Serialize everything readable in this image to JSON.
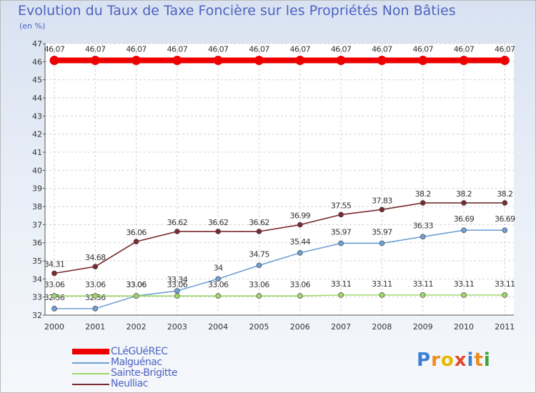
{
  "title": "Evolution du Taux de Taxe Foncière sur les Propriétés Non Bâties",
  "unit_label": "(en %)",
  "logo_text": "Proxiti",
  "chart_data": {
    "type": "line",
    "title": "Evolution du Taux de Taxe Foncière sur les Propriétés Non Bâties",
    "ylabel": "(en %)",
    "xlabel": "",
    "ylim": [
      32,
      47
    ],
    "yticks": [
      32,
      33,
      34,
      35,
      36,
      37,
      38,
      39,
      40,
      41,
      42,
      43,
      44,
      45,
      46,
      47
    ],
    "grid": true,
    "x": [
      "2000",
      "2001",
      "2002",
      "2003",
      "2004",
      "2005",
      "2006",
      "2007",
      "2008",
      "2009",
      "2010",
      "2011"
    ],
    "series": [
      {
        "name": "CLéGUéREC",
        "color": "#ee0000",
        "values": [
          46.07,
          46.07,
          46.07,
          46.07,
          46.07,
          46.07,
          46.07,
          46.07,
          46.07,
          46.07,
          46.07,
          46.07
        ],
        "labels": [
          "46.07",
          "46.07",
          "46.07",
          "46.07",
          "46.07",
          "46.07",
          "46.07",
          "46.07",
          "46.07",
          "46.07",
          "46.07",
          "46.07"
        ]
      },
      {
        "name": "Malguénac",
        "color": "#6fa0d3",
        "values": [
          32.36,
          32.36,
          33.06,
          33.34,
          34.0,
          34.75,
          35.44,
          35.97,
          35.97,
          36.33,
          36.69,
          36.69
        ],
        "labels": [
          "32.36",
          "32.36",
          "33.06",
          "33.34",
          "34",
          "34.75",
          "35.44",
          "35.97",
          "35.97",
          "36.33",
          "36.69",
          "36.69"
        ]
      },
      {
        "name": "Sainte-Brigitte",
        "color": "#9fd86a",
        "values": [
          33.06,
          33.06,
          33.06,
          33.06,
          33.06,
          33.06,
          33.06,
          33.11,
          33.11,
          33.11,
          33.11,
          33.11
        ],
        "labels": [
          "33.06",
          "33.06",
          "33.06",
          "33.06",
          "33.06",
          "33.06",
          "33.06",
          "33.11",
          "33.11",
          "33.11",
          "33.11",
          "33.11"
        ]
      },
      {
        "name": "Neulliac",
        "color": "#7a2a2e",
        "values": [
          34.31,
          34.68,
          36.06,
          36.62,
          36.62,
          36.62,
          36.99,
          37.55,
          37.83,
          38.2,
          38.2,
          38.2
        ],
        "labels": [
          "34.31",
          "34.68",
          "36.06",
          "36.62",
          "36.62",
          "36.62",
          "36.99",
          "37.55",
          "37.83",
          "38.2",
          "38.2",
          "38.2"
        ]
      }
    ]
  }
}
